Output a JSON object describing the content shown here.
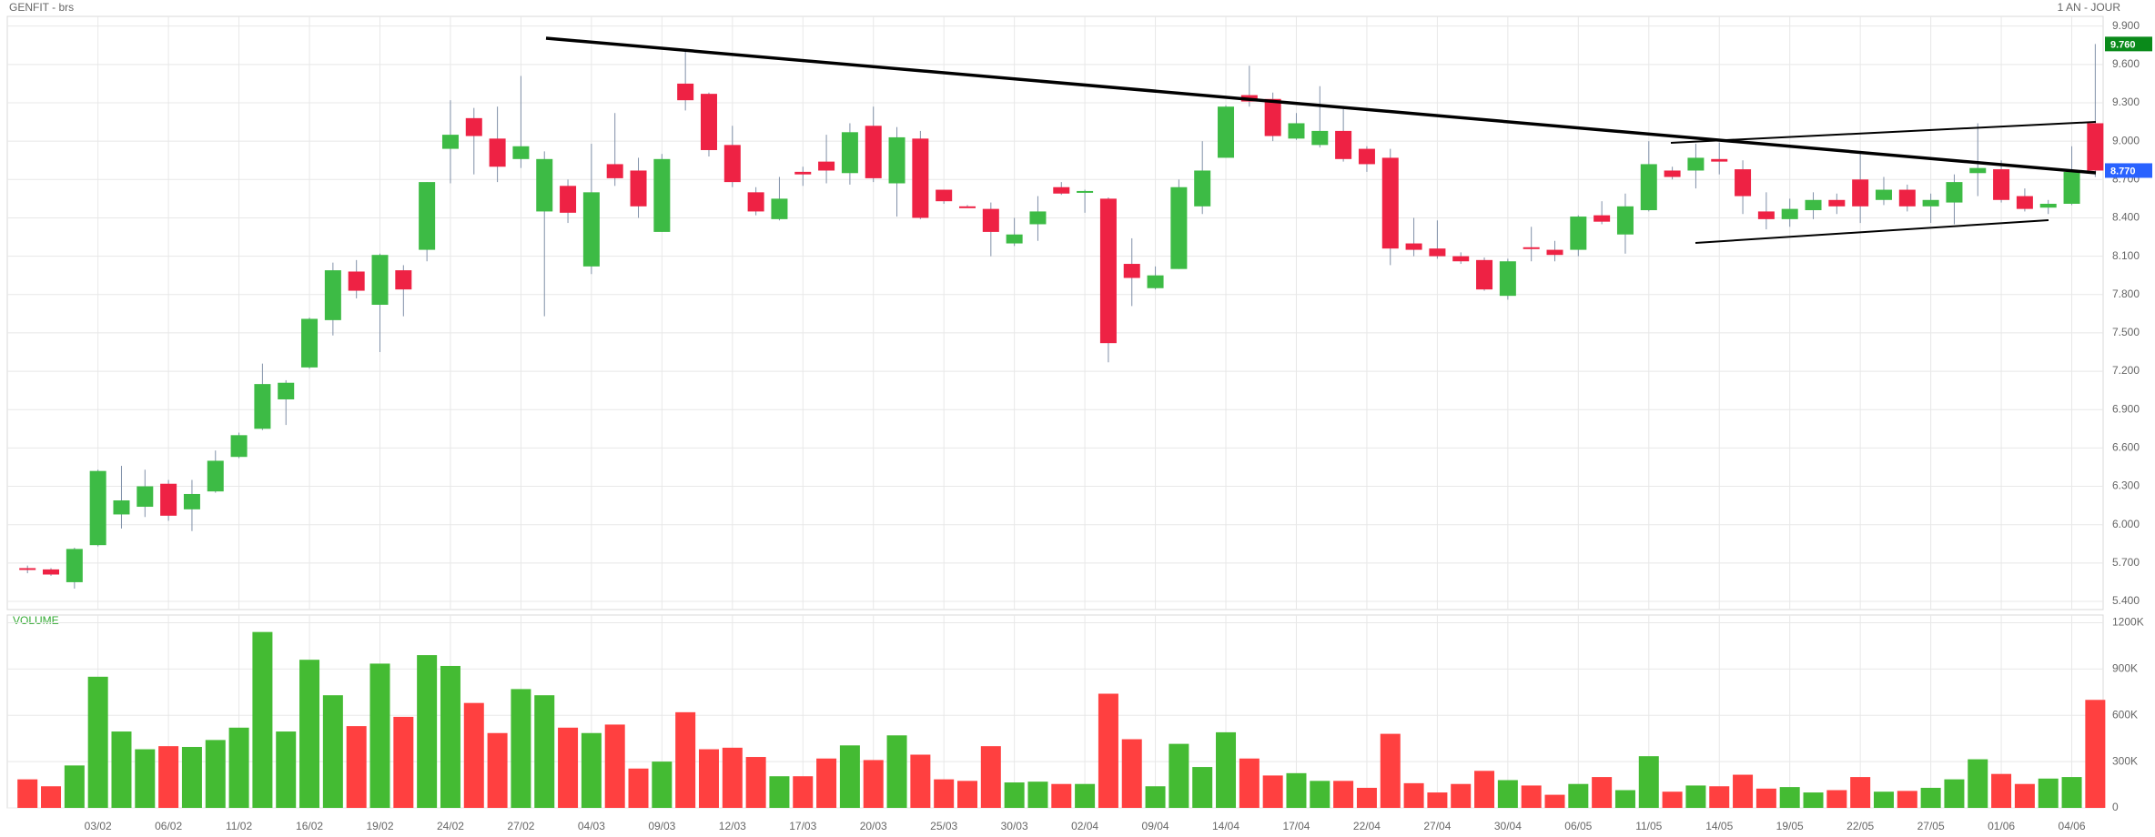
{
  "chart_data": {
    "type": "candlestick",
    "title": "GENFIT - brs",
    "subtitle": "1 AN - JOUR",
    "volume_label": "VOLUME",
    "up_color": "#3dbb45",
    "down_color": "#ee2244",
    "volume_up_color": "#44bb33",
    "volume_down_color": "#ff4040",
    "grid": true,
    "categories": [
      null,
      null,
      null,
      "03/02",
      null,
      null,
      "06/02",
      null,
      null,
      "11/02",
      null,
      null,
      "16/02",
      null,
      null,
      "19/02",
      null,
      null,
      "24/02",
      null,
      null,
      "27/02",
      null,
      null,
      "04/03",
      null,
      null,
      "09/03",
      null,
      null,
      "12/03",
      null,
      null,
      "17/03",
      null,
      null,
      "20/03",
      null,
      null,
      "25/03",
      null,
      null,
      "30/03",
      null,
      null,
      "02/04",
      null,
      null,
      "09/04",
      null,
      null,
      "14/04",
      null,
      null,
      "17/04",
      null,
      null,
      "22/04",
      null,
      null,
      "27/04",
      null,
      null,
      "30/04",
      null,
      null,
      "06/05",
      null,
      null,
      "11/05",
      null,
      null,
      "14/05",
      null,
      null,
      "19/05",
      null,
      null,
      "22/05",
      null,
      null,
      "27/05",
      null,
      null,
      "01/06",
      null,
      null,
      "04/06",
      null
    ],
    "open": [
      5.66,
      5.65,
      5.55,
      5.84,
      6.08,
      6.14,
      6.32,
      6.12,
      6.26,
      6.53,
      6.75,
      6.98,
      7.23,
      7.6,
      7.98,
      7.72,
      7.99,
      8.15,
      8.94,
      9.18,
      9.02,
      8.86,
      8.45,
      8.65,
      8.02,
      8.82,
      8.77,
      8.29,
      9.45,
      9.37,
      8.97,
      8.6,
      8.39,
      8.76,
      8.84,
      8.75,
      9.12,
      8.67,
      9.02,
      8.62,
      8.49,
      8.47,
      8.2,
      8.35,
      8.64,
      8.61,
      8.55,
      8.04,
      7.85,
      8.0,
      8.49,
      8.87,
      9.36,
      9.33,
      9.02,
      8.97,
      9.08,
      8.94,
      8.87,
      8.2,
      8.16,
      8.1,
      8.07,
      7.79,
      8.17,
      8.15,
      8.15,
      8.42,
      8.27,
      8.46,
      8.77,
      8.77,
      8.86,
      8.78,
      8.45,
      8.39,
      8.46,
      8.54,
      8.7,
      8.54,
      8.62,
      8.49,
      8.52,
      8.75,
      8.78,
      8.57,
      8.48,
      8.51,
      9.14
    ],
    "high": [
      5.68,
      5.66,
      5.82,
      6.43,
      6.46,
      6.43,
      6.35,
      6.35,
      6.58,
      6.72,
      7.26,
      7.13,
      7.62,
      8.05,
      8.07,
      8.12,
      8.03,
      8.68,
      9.32,
      9.26,
      9.27,
      9.51,
      8.92,
      8.7,
      8.98,
      9.22,
      8.87,
      8.9,
      9.71,
      9.38,
      9.12,
      8.64,
      8.72,
      8.8,
      9.05,
      9.14,
      9.27,
      9.11,
      9.08,
      8.62,
      8.5,
      8.52,
      8.4,
      8.57,
      8.68,
      8.62,
      8.56,
      8.24,
      8.02,
      8.7,
      9.0,
      9.28,
      9.59,
      9.38,
      9.22,
      9.43,
      9.25,
      8.96,
      8.94,
      8.4,
      8.38,
      8.13,
      8.09,
      8.08,
      8.33,
      8.22,
      8.42,
      8.53,
      8.59,
      9.0,
      8.8,
      8.98,
      8.99,
      8.85,
      8.6,
      8.55,
      8.6,
      8.59,
      8.92,
      8.72,
      8.66,
      8.59,
      8.74,
      9.14,
      8.85,
      8.63,
      8.54,
      8.96,
      9.76
    ],
    "low": [
      5.62,
      5.6,
      5.5,
      5.83,
      5.97,
      6.06,
      6.03,
      5.95,
      6.25,
      6.52,
      6.74,
      6.78,
      7.22,
      7.48,
      7.77,
      7.35,
      7.63,
      8.06,
      8.67,
      8.74,
      8.68,
      8.79,
      7.63,
      8.36,
      7.96,
      8.65,
      8.4,
      8.29,
      9.24,
      8.88,
      8.64,
      8.42,
      8.38,
      8.65,
      8.67,
      8.66,
      8.68,
      8.41,
      8.39,
      8.51,
      8.48,
      8.1,
      8.18,
      8.22,
      8.58,
      8.44,
      7.27,
      7.71,
      7.84,
      8.0,
      8.43,
      8.87,
      9.27,
      9.0,
      9.01,
      8.95,
      8.84,
      8.76,
      8.03,
      8.1,
      8.08,
      8.04,
      7.83,
      7.76,
      8.06,
      8.06,
      8.1,
      8.35,
      8.12,
      8.45,
      8.7,
      8.63,
      8.74,
      8.43,
      8.31,
      8.33,
      8.39,
      8.43,
      8.36,
      8.5,
      8.45,
      8.36,
      8.35,
      8.57,
      8.52,
      8.45,
      8.43,
      8.5,
      8.72
    ],
    "close": [
      5.65,
      5.61,
      5.81,
      6.42,
      6.19,
      6.3,
      6.07,
      6.24,
      6.5,
      6.7,
      7.1,
      7.11,
      7.61,
      7.99,
      7.83,
      8.11,
      7.84,
      8.68,
      9.05,
      9.04,
      8.8,
      8.96,
      8.86,
      8.44,
      8.6,
      8.71,
      8.49,
      8.86,
      9.32,
      8.93,
      8.68,
      8.45,
      8.55,
      8.74,
      8.77,
      9.07,
      8.71,
      9.03,
      8.4,
      8.53,
      8.48,
      8.29,
      8.27,
      8.45,
      8.59,
      8.61,
      7.42,
      7.93,
      7.95,
      8.64,
      8.77,
      9.27,
      9.31,
      9.04,
      9.14,
      9.08,
      8.86,
      8.82,
      8.16,
      8.15,
      8.1,
      8.06,
      7.84,
      8.06,
      8.16,
      8.11,
      8.41,
      8.37,
      8.49,
      8.82,
      8.72,
      8.87,
      8.84,
      8.57,
      8.39,
      8.47,
      8.54,
      8.49,
      8.49,
      8.62,
      8.49,
      8.54,
      8.68,
      8.79,
      8.54,
      8.47,
      8.51,
      8.76,
      8.77
    ],
    "volume": [
      185000,
      140000,
      275000,
      850000,
      495000,
      380000,
      400000,
      395000,
      440000,
      520000,
      1140000,
      495000,
      960000,
      730000,
      530000,
      935000,
      590000,
      990000,
      920000,
      680000,
      485000,
      770000,
      730000,
      520000,
      485000,
      540000,
      255000,
      300000,
      620000,
      380000,
      390000,
      330000,
      205000,
      205000,
      320000,
      405000,
      310000,
      470000,
      345000,
      185000,
      175000,
      400000,
      165000,
      170000,
      155000,
      155000,
      740000,
      445000,
      140000,
      415000,
      265000,
      490000,
      320000,
      210000,
      225000,
      175000,
      175000,
      130000,
      480000,
      160000,
      100000,
      155000,
      240000,
      180000,
      145000,
      85000,
      155000,
      200000,
      115000,
      335000,
      105000,
      145000,
      140000,
      215000,
      125000,
      135000,
      100000,
      115000,
      200000,
      105000,
      110000,
      130000,
      185000,
      315000,
      220000,
      155000,
      190000,
      200000,
      700000
    ],
    "ylim": [
      5.336,
      9.976
    ],
    "yticks": [
      {
        "value": 5.4,
        "label": "5.400"
      },
      {
        "value": 5.7,
        "label": "5.700"
      },
      {
        "value": 6.0,
        "label": "6.000"
      },
      {
        "value": 6.3,
        "label": "6.300"
      },
      {
        "value": 6.6,
        "label": "6.600"
      },
      {
        "value": 6.9,
        "label": "6.900"
      },
      {
        "value": 7.2,
        "label": "7.200"
      },
      {
        "value": 7.5,
        "label": "7.500"
      },
      {
        "value": 7.8,
        "label": "7.800"
      },
      {
        "value": 8.1,
        "label": "8.100"
      },
      {
        "value": 8.4,
        "label": "8.400"
      },
      {
        "value": 8.7,
        "label": "8.700"
      },
      {
        "value": 9.0,
        "label": "9.000"
      },
      {
        "value": 9.3,
        "label": "9.300"
      },
      {
        "value": 9.6,
        "label": "9.600"
      },
      {
        "value": 9.9,
        "label": "9.900"
      }
    ],
    "volume_ylim": [
      0,
      1250000
    ],
    "volume_yticks": [
      0,
      {
        "value": 300000,
        "label": "300K"
      },
      {
        "value": 600000,
        "label": "600K"
      },
      {
        "value": 900000,
        "label": "900K"
      },
      {
        "value": 1200000,
        "label": "1200K"
      }
    ],
    "price_tags": [
      {
        "value": 9.76,
        "label": "9.760",
        "color": "#0a8a1a"
      },
      {
        "value": 8.77,
        "label": "8.770",
        "color": "#2962ff"
      }
    ]
  }
}
